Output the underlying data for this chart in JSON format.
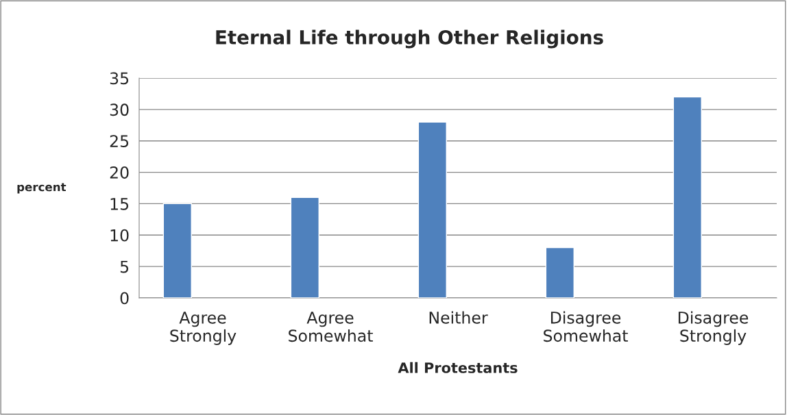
{
  "chart_data": {
    "type": "bar",
    "title": "Eternal Life through Other Religions",
    "xlabel": "All Protestants",
    "ylabel": "percent",
    "categories": [
      "Agree\nStrongly",
      "Agree\nSomewhat",
      "Neither",
      "Disagree\nSomewhat",
      "Disagree\nStrongly"
    ],
    "values": [
      15,
      16,
      28,
      8,
      32
    ],
    "color": "#4f81bd",
    "ylim": [
      0,
      35
    ],
    "yticks": [
      0,
      5,
      10,
      15,
      20,
      25,
      30,
      35
    ],
    "grid": "y",
    "legend": false
  }
}
